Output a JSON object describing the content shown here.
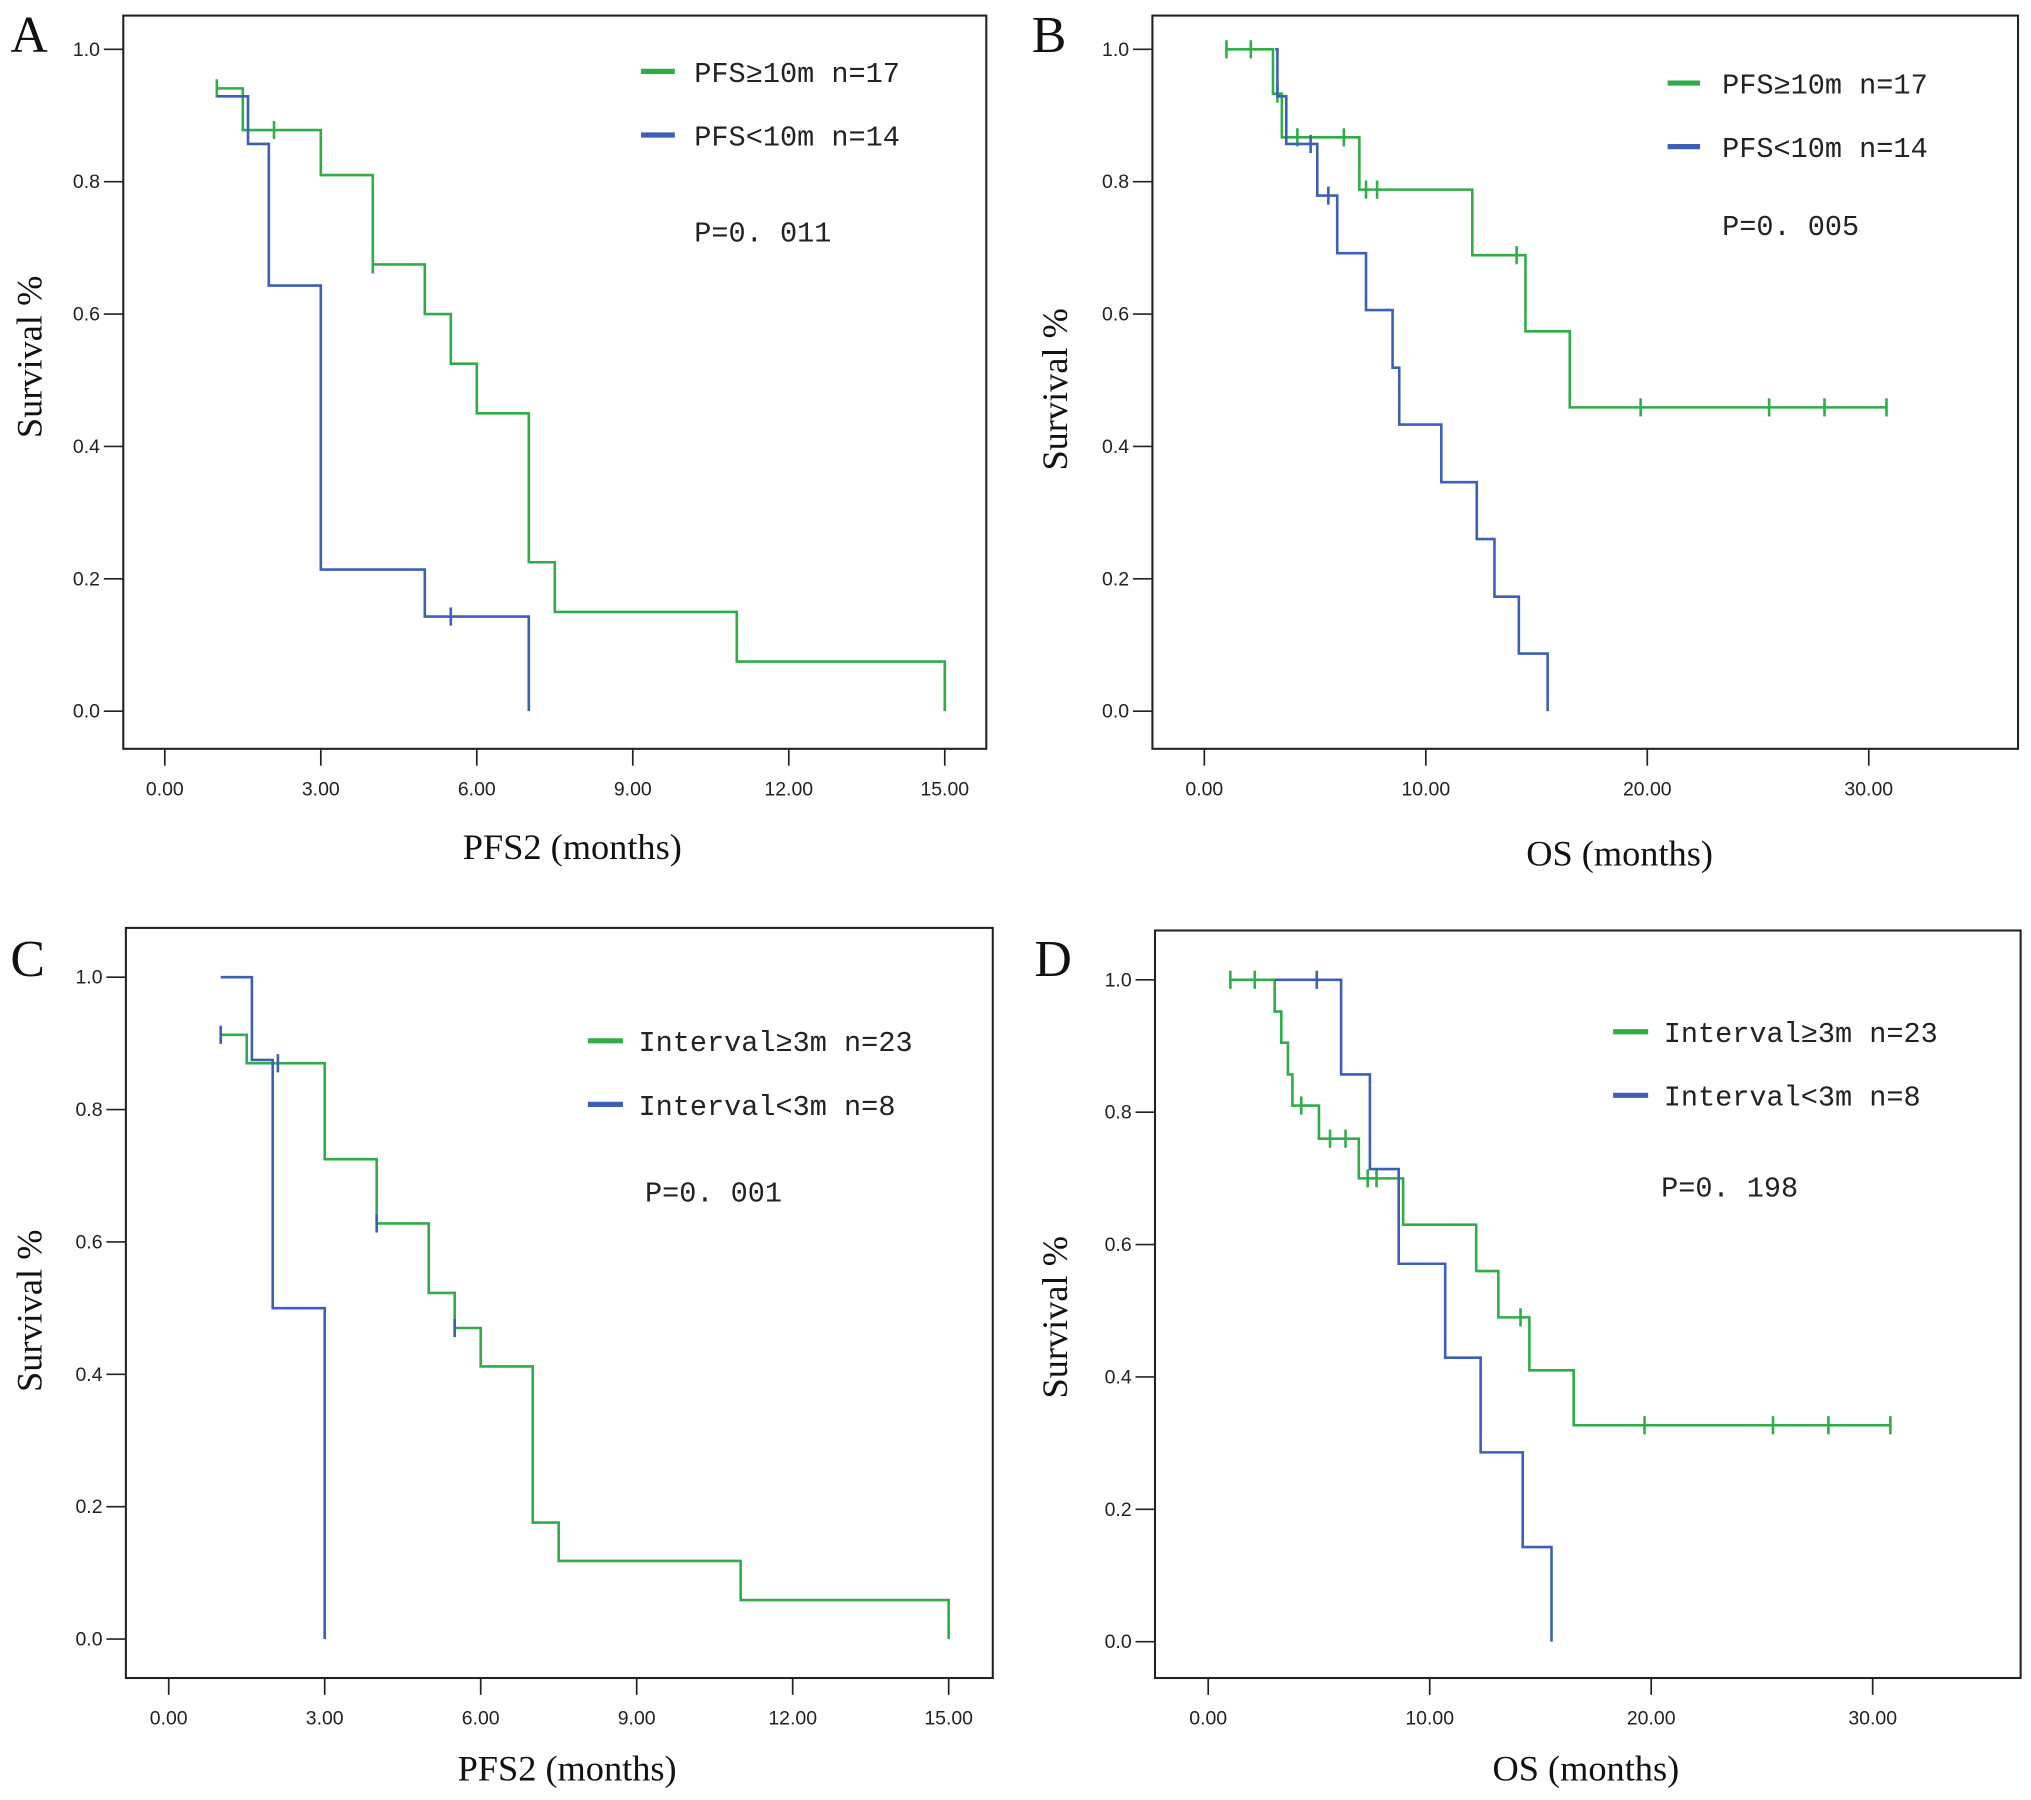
{
  "chart_data": [
    {
      "type": "line",
      "subtype": "kaplan-meier",
      "panel_label": "A",
      "xlabel": "PFS2 (months)",
      "ylabel": "Survival %",
      "xlim": [
        0,
        15
      ],
      "ylim": [
        0,
        1
      ],
      "xticks": [
        "0.00",
        "3.00",
        "6.00",
        "9.00",
        "12.00",
        "15.00"
      ],
      "xtick_values": [
        0,
        3,
        6,
        9,
        12,
        15
      ],
      "yticks": [
        "0.0",
        "0.2",
        "0.4",
        "0.6",
        "0.8",
        "1.0"
      ],
      "p_value": "P=0. 011",
      "legend_position": "top-right",
      "series": [
        {
          "name": "PFS≥10m n=17",
          "color": "#2fae48",
          "start": [
            1,
            0.941
          ],
          "steps": [
            [
              1.5,
              0.878
            ],
            [
              3,
              0.81
            ],
            [
              4,
              0.675
            ],
            [
              5,
              0.6
            ],
            [
              5.5,
              0.525
            ],
            [
              6,
              0.45
            ],
            [
              7,
              0.225
            ],
            [
              7.5,
              0.15
            ],
            [
              11,
              0.075
            ],
            [
              15,
              0
            ]
          ],
          "end": 15,
          "censored": [
            [
              1,
              0.941
            ],
            [
              2.1,
              0.878
            ],
            [
              4,
              0.675
            ]
          ]
        },
        {
          "name": "PFS<10m n=14",
          "color": "#3d5fb8",
          "start": [
            1,
            0.929
          ],
          "steps": [
            [
              1.6,
              0.857
            ],
            [
              2,
              0.643
            ],
            [
              3,
              0.214
            ],
            [
              5,
              0.143
            ],
            [
              7,
              0
            ]
          ],
          "end": 7,
          "censored": [
            [
              5.5,
              0.143
            ]
          ]
        }
      ]
    },
    {
      "type": "line",
      "subtype": "kaplan-meier",
      "panel_label": "B",
      "xlabel": "OS (months)",
      "ylabel": "Survival %",
      "xlim": [
        0,
        30
      ],
      "ylim": [
        0,
        1
      ],
      "xticks": [
        "0.00",
        "10.00",
        "20.00",
        "30.00"
      ],
      "xtick_values": [
        0,
        10,
        20,
        30
      ],
      "yticks": [
        "0.0",
        "0.2",
        "0.4",
        "0.6",
        "0.8",
        "1.0"
      ],
      "p_value": "P=0. 005",
      "legend_position": "top-right",
      "series": [
        {
          "name": "PFS≥10m n=17",
          "color": "#2fae48",
          "start": [
            1,
            1.0
          ],
          "steps": [
            [
              3.1,
              0.933
            ],
            [
              3.5,
              0.867
            ],
            [
              7,
              0.788
            ],
            [
              12.1,
              0.689
            ],
            [
              14.5,
              0.574
            ],
            [
              16.5,
              0.459
            ]
          ],
          "end": 30.8,
          "censored": [
            [
              1,
              1.0
            ],
            [
              2.1,
              1.0
            ],
            [
              3.3,
              0.933
            ],
            [
              4.2,
              0.867
            ],
            [
              6.3,
              0.867
            ],
            [
              7.3,
              0.788
            ],
            [
              7.8,
              0.788
            ],
            [
              14.1,
              0.689
            ],
            [
              19.7,
              0.459
            ],
            [
              25.5,
              0.459
            ],
            [
              28,
              0.459
            ],
            [
              30.8,
              0.459
            ]
          ]
        },
        {
          "name": "PFS<10m n=14",
          "color": "#3d5fb8",
          "start": [
            3.2,
            1.0
          ],
          "steps": [
            [
              3.3,
              0.929
            ],
            [
              3.7,
              0.857
            ],
            [
              5.1,
              0.779
            ],
            [
              6,
              0.692
            ],
            [
              7.3,
              0.606
            ],
            [
              8.5,
              0.519
            ],
            [
              8.8,
              0.433
            ],
            [
              10.7,
              0.346
            ],
            [
              12.3,
              0.26
            ],
            [
              13.1,
              0.173
            ],
            [
              14.2,
              0.087
            ],
            [
              15.5,
              0
            ]
          ],
          "end": 15.5,
          "censored": [
            [
              4.8,
              0.857
            ],
            [
              5.6,
              0.779
            ]
          ]
        }
      ]
    },
    {
      "type": "line",
      "subtype": "kaplan-meier",
      "panel_label": "C",
      "xlabel": "PFS2 (months)",
      "ylabel": "Survival %",
      "xlim": [
        0,
        15
      ],
      "ylim": [
        0,
        1
      ],
      "xticks": [
        "0.00",
        "3.00",
        "6.00",
        "9.00",
        "12.00",
        "15.00"
      ],
      "xtick_values": [
        0,
        3,
        6,
        9,
        12,
        15
      ],
      "yticks": [
        "0.0",
        "0.2",
        "0.4",
        "0.6",
        "0.8",
        "1.0"
      ],
      "p_value": "P=0. 001",
      "legend_position": "top-right",
      "series": [
        {
          "name": "Interval≥3m n=23",
          "color": "#2fae48",
          "censor_color": "#3d5fb8",
          "start": [
            1,
            0.913
          ],
          "steps": [
            [
              1.5,
              0.87
            ],
            [
              3,
              0.725
            ],
            [
              4,
              0.628
            ],
            [
              5,
              0.523
            ],
            [
              5.5,
              0.47
            ],
            [
              6,
              0.412
            ],
            [
              7,
              0.176
            ],
            [
              7.5,
              0.118
            ],
            [
              11,
              0.059
            ],
            [
              15,
              0
            ]
          ],
          "end": 15,
          "censored": [
            [
              1,
              0.913
            ],
            [
              4,
              0.628
            ],
            [
              5.5,
              0.47
            ]
          ]
        },
        {
          "name": "Interval<3m n=8",
          "color": "#3d5fb8",
          "start": [
            1,
            1.0
          ],
          "steps": [
            [
              1.6,
              0.875
            ],
            [
              2,
              0.5
            ],
            [
              3,
              0
            ]
          ],
          "end": 3,
          "censored": [
            [
              2.1,
              0.87
            ]
          ]
        }
      ]
    },
    {
      "type": "line",
      "subtype": "kaplan-meier",
      "panel_label": "D",
      "xlabel": "OS (months)",
      "ylabel": "Survival %",
      "xlim": [
        0,
        30
      ],
      "ylim": [
        0,
        1
      ],
      "xticks": [
        "0.00",
        "10.00",
        "20.00",
        "30.00"
      ],
      "xtick_values": [
        0,
        10,
        20,
        30
      ],
      "yticks": [
        "0.0",
        "0.2",
        "0.4",
        "0.6",
        "0.8",
        "1.0"
      ],
      "p_value": "P=0. 198",
      "legend_position": "top-right",
      "series": [
        {
          "name": "Interval≥3m n=23",
          "color": "#2fae48",
          "start": [
            1,
            1.0
          ],
          "steps": [
            [
              3,
              0.952
            ],
            [
              3.3,
              0.905
            ],
            [
              3.6,
              0.857
            ],
            [
              3.8,
              0.81
            ],
            [
              5,
              0.76
            ],
            [
              6.8,
              0.7
            ],
            [
              8.8,
              0.63
            ],
            [
              12.1,
              0.56
            ],
            [
              13.1,
              0.49
            ],
            [
              14.5,
              0.41
            ],
            [
              16.5,
              0.327
            ]
          ],
          "end": 30.8,
          "censored": [
            [
              1,
              1.0
            ],
            [
              2.1,
              1.0
            ],
            [
              4.2,
              0.81
            ],
            [
              5.5,
              0.76
            ],
            [
              6.2,
              0.76
            ],
            [
              7.2,
              0.7
            ],
            [
              7.6,
              0.7
            ],
            [
              14.1,
              0.49
            ],
            [
              19.7,
              0.327
            ],
            [
              25.5,
              0.327
            ],
            [
              28,
              0.327
            ],
            [
              30.8,
              0.327
            ]
          ]
        },
        {
          "name": "Interval<3m n=8",
          "color": "#3d5fb8",
          "start": [
            3,
            1.0
          ],
          "steps": [
            [
              6,
              0.857
            ],
            [
              7.3,
              0.714
            ],
            [
              8.6,
              0.571
            ],
            [
              10.7,
              0.429
            ],
            [
              12.3,
              0.286
            ],
            [
              14.2,
              0.143
            ],
            [
              15.5,
              0
            ]
          ],
          "end": 15.5,
          "censored": [
            [
              4.9,
              1.0
            ]
          ]
        }
      ]
    }
  ]
}
